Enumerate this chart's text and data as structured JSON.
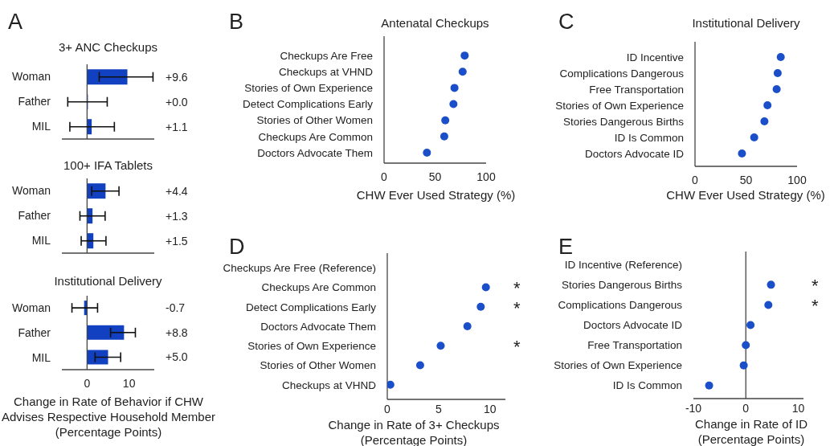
{
  "chart_data": [
    {
      "type": "bar",
      "orientation": "horizontal",
      "title": "3+ ANC Checkups",
      "categories": [
        "Woman",
        "Father",
        "MIL"
      ],
      "values": [
        9.6,
        0.0,
        1.1
      ],
      "errors": [
        [
          2.9,
          15.7
        ],
        [
          -4.6,
          4.8
        ],
        [
          -4.1,
          6.5
        ]
      ],
      "value_labels": [
        "+9.6",
        "+0.0",
        "+1.1"
      ],
      "color": "#1141c0",
      "xlim": [
        -6,
        16
      ],
      "tick_labels": "y",
      "ref_lines": [
        {
          "axis": "x",
          "value": 0
        }
      ],
      "annotations": [
        "A"
      ]
    },
    {
      "type": "bar",
      "orientation": "horizontal",
      "title": "100+ IFA Tablets",
      "categories": [
        "Woman",
        "Father",
        "MIL"
      ],
      "values": [
        4.4,
        1.3,
        1.5
      ],
      "errors": [
        [
          1.1,
          7.6
        ],
        [
          -1.7,
          4.3
        ],
        [
          -1.4,
          4.5
        ]
      ],
      "value_labels": [
        "+4.4",
        "+1.3",
        "+1.5"
      ],
      "color": "#1141c0",
      "xlim": [
        -6,
        16
      ],
      "tick_labels": "y",
      "ref_lines": [
        {
          "axis": "x",
          "value": 0
        }
      ]
    },
    {
      "type": "bar",
      "orientation": "horizontal",
      "title": "Institutional Delivery",
      "categories": [
        "Woman",
        "Father",
        "MIL"
      ],
      "values": [
        -0.7,
        8.8,
        5.0
      ],
      "errors": [
        [
          -3.6,
          2.5
        ],
        [
          5.6,
          11.5
        ],
        [
          1.9,
          8.0
        ]
      ],
      "value_labels": [
        "-0.7",
        "+8.8",
        "+5.0"
      ],
      "color": "#1141c0",
      "xlim": [
        -6,
        16
      ],
      "xticks": [
        0,
        10
      ],
      "xlabel": "Change in Rate of Behavior if CHW Advises Respective Household Member (Percentage Points)",
      "ref_lines": [
        {
          "axis": "x",
          "value": 0
        }
      ]
    },
    {
      "type": "scatter",
      "orientation": "horizontal",
      "title": "Antenatal Checkups",
      "categories": [
        "Checkups Are Free",
        "Checkups at VHND",
        "Stories of Own Experience",
        "Detect Complications Early",
        "Stories of Other Women",
        "Checkups Are Common",
        "Doctors Advocate Them"
      ],
      "values": [
        79,
        77,
        69,
        68,
        60,
        59,
        42
      ],
      "color": "#1a4fc9",
      "marker": "circle",
      "xlim": [
        0,
        100
      ],
      "xticks": [
        0,
        50,
        100
      ],
      "xlabel": "CHW Ever Used Strategy (%)",
      "annotations": [
        "B"
      ]
    },
    {
      "type": "scatter",
      "orientation": "horizontal",
      "title": "Institutional Delivery",
      "categories": [
        "ID Incentive",
        "Complications Dangerous",
        "Free Transportation",
        "Stories of Own Experience",
        "Stories Dangerous Births",
        "ID Is Common",
        "Doctors Advocate ID"
      ],
      "values": [
        84,
        81,
        80,
        71,
        68,
        58,
        46
      ],
      "color": "#1a4fc9",
      "marker": "circle",
      "xlim": [
        0,
        100
      ],
      "xticks": [
        0,
        50,
        100
      ],
      "xlabel": "CHW Ever Used Strategy (%)",
      "annotations": [
        "C"
      ]
    },
    {
      "type": "scatter",
      "orientation": "horizontal",
      "categories": [
        "Checkups Are Free (Reference)",
        "Checkups Are Common",
        "Detect Complications Early",
        "Doctors Advocate Them",
        "Stories of Own Experience",
        "Stories of Other Women",
        "Checkups at VHND"
      ],
      "values": [
        null,
        9.6,
        9.1,
        7.8,
        5.2,
        3.2,
        0.3
      ],
      "color": "#1a4fc9",
      "marker": "circle",
      "xlim": [
        0,
        11.5
      ],
      "xticks": [
        0,
        5,
        10
      ],
      "xlabel": "Change in Rate of 3+ Checkups (Percentage Points)",
      "annotations": [
        "D",
        "*",
        "*",
        "*"
      ]
    },
    {
      "type": "scatter",
      "orientation": "horizontal",
      "categories": [
        "ID Incentive (Reference)",
        "Stories Dangerous Births",
        "Complications Dangerous",
        "Doctors Advocate ID",
        "Free Transportation",
        "Stories of Own Experience",
        "ID Is Common"
      ],
      "values": [
        null,
        4.8,
        4.3,
        0.9,
        0.0,
        -0.4,
        -7.0
      ],
      "color": "#1a4fc9",
      "marker": "circle",
      "xlim": [
        -10,
        11
      ],
      "xticks": [
        -10,
        0,
        10
      ],
      "xlabel": "Change in Rate of ID (Percentage Points)",
      "ref_lines": [
        {
          "axis": "x",
          "value": 0
        }
      ],
      "annotations": [
        "E",
        "*",
        "*"
      ]
    }
  ]
}
